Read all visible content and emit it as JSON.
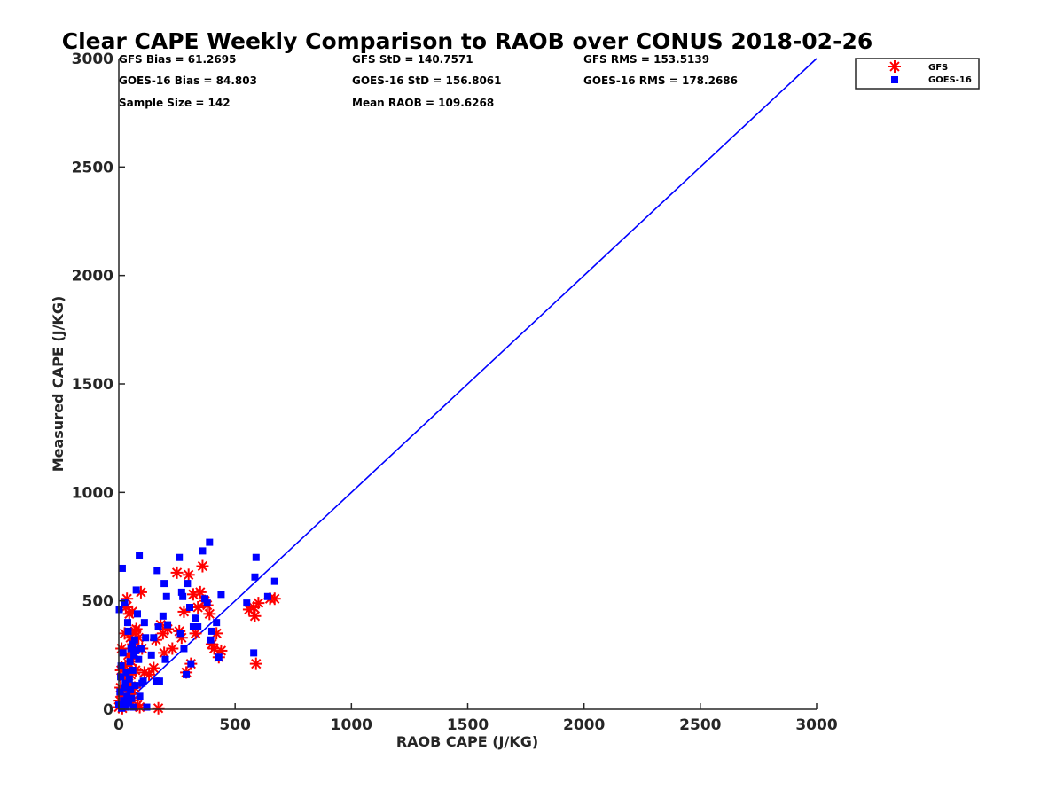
{
  "chart_data": {
    "type": "scatter",
    "title": "Clear CAPE Weekly Comparison to RAOB over CONUS 2018-02-26",
    "xlabel": "RAOB CAPE (J/KG)",
    "ylabel": "Measured CAPE (J/KG)",
    "xlim": [
      0,
      3000
    ],
    "ylim": [
      0,
      3000
    ],
    "xticks": [
      0,
      500,
      1000,
      1500,
      2000,
      2500,
      3000
    ],
    "yticks": [
      0,
      500,
      1000,
      1500,
      2000,
      2500,
      3000
    ],
    "xtick_labels": [
      "0",
      "500",
      "1000",
      "1500",
      "2000",
      "2500",
      "3000"
    ],
    "ytick_labels": [
      "0",
      "500",
      "1000",
      "1500",
      "2000",
      "2500",
      "3000"
    ],
    "grid": false,
    "legend_position": "top-right, outside plot",
    "stats": [
      "GFS Bias = 61.2695",
      "GFS StD = 140.7571",
      "GFS RMS = 153.5139",
      "GOES-16 Bias = 84.803",
      "GOES-16 StD = 156.8061",
      "GOES-16 RMS = 178.2686",
      "Sample Size = 142",
      "Mean RAOB = 109.6268"
    ],
    "reference_line": {
      "points": [
        [
          0,
          0
        ],
        [
          3000,
          3000
        ]
      ],
      "color": "#0000ff"
    },
    "series": [
      {
        "name": "GFS",
        "marker": "asterisk",
        "color": "#ff0000",
        "points": [
          [
            0,
            10
          ],
          [
            5,
            40
          ],
          [
            8,
            100
          ],
          [
            10,
            180
          ],
          [
            12,
            280
          ],
          [
            15,
            5
          ],
          [
            18,
            60
          ],
          [
            20,
            150
          ],
          [
            22,
            20
          ],
          [
            25,
            350
          ],
          [
            28,
            200
          ],
          [
            30,
            470
          ],
          [
            32,
            90
          ],
          [
            35,
            510
          ],
          [
            38,
            30
          ],
          [
            40,
            250
          ],
          [
            42,
            120
          ],
          [
            45,
            440
          ],
          [
            48,
            70
          ],
          [
            50,
            330
          ],
          [
            52,
            160
          ],
          [
            55,
            220
          ],
          [
            58,
            450
          ],
          [
            60,
            40
          ],
          [
            62,
            300
          ],
          [
            65,
            260
          ],
          [
            68,
            100
          ],
          [
            70,
            360
          ],
          [
            72,
            180
          ],
          [
            75,
            370
          ],
          [
            80,
            20
          ],
          [
            85,
            330
          ],
          [
            90,
            10
          ],
          [
            95,
            540
          ],
          [
            100,
            280
          ],
          [
            110,
            170
          ],
          [
            130,
            160
          ],
          [
            150,
            190
          ],
          [
            160,
            320
          ],
          [
            170,
            5
          ],
          [
            180,
            390
          ],
          [
            190,
            350
          ],
          [
            195,
            260
          ],
          [
            210,
            370
          ],
          [
            230,
            280
          ],
          [
            250,
            630
          ],
          [
            260,
            360
          ],
          [
            270,
            330
          ],
          [
            280,
            450
          ],
          [
            290,
            170
          ],
          [
            300,
            620
          ],
          [
            310,
            210
          ],
          [
            320,
            530
          ],
          [
            330,
            350
          ],
          [
            340,
            470
          ],
          [
            350,
            540
          ],
          [
            360,
            660
          ],
          [
            370,
            500
          ],
          [
            380,
            480
          ],
          [
            390,
            440
          ],
          [
            400,
            300
          ],
          [
            410,
            280
          ],
          [
            420,
            350
          ],
          [
            430,
            240
          ],
          [
            440,
            270
          ],
          [
            560,
            460
          ],
          [
            580,
            470
          ],
          [
            585,
            430
          ],
          [
            590,
            210
          ],
          [
            600,
            490
          ],
          [
            650,
            510
          ],
          [
            670,
            510
          ]
        ]
      },
      {
        "name": "GOES-16",
        "marker": "square",
        "color": "#0000ff",
        "points": [
          [
            0,
            20
          ],
          [
            2,
            460
          ],
          [
            5,
            80
          ],
          [
            8,
            150
          ],
          [
            10,
            200
          ],
          [
            12,
            5
          ],
          [
            15,
            650
          ],
          [
            18,
            260
          ],
          [
            20,
            40
          ],
          [
            22,
            100
          ],
          [
            25,
            490
          ],
          [
            28,
            120
          ],
          [
            30,
            10
          ],
          [
            32,
            170
          ],
          [
            35,
            60
          ],
          [
            38,
            400
          ],
          [
            40,
            360
          ],
          [
            42,
            30
          ],
          [
            45,
            140
          ],
          [
            48,
            220
          ],
          [
            50,
            90
          ],
          [
            52,
            280
          ],
          [
            55,
            50
          ],
          [
            58,
            300
          ],
          [
            60,
            180
          ],
          [
            62,
            10
          ],
          [
            65,
            250
          ],
          [
            68,
            320
          ],
          [
            70,
            110
          ],
          [
            72,
            270
          ],
          [
            75,
            550
          ],
          [
            80,
            440
          ],
          [
            85,
            230
          ],
          [
            88,
            710
          ],
          [
            90,
            60
          ],
          [
            95,
            280
          ],
          [
            100,
            120
          ],
          [
            105,
            130
          ],
          [
            110,
            400
          ],
          [
            115,
            330
          ],
          [
            120,
            10
          ],
          [
            140,
            250
          ],
          [
            150,
            330
          ],
          [
            160,
            130
          ],
          [
            165,
            640
          ],
          [
            170,
            380
          ],
          [
            175,
            130
          ],
          [
            190,
            430
          ],
          [
            195,
            580
          ],
          [
            200,
            230
          ],
          [
            205,
            520
          ],
          [
            210,
            390
          ],
          [
            260,
            700
          ],
          [
            265,
            350
          ],
          [
            270,
            540
          ],
          [
            275,
            520
          ],
          [
            280,
            280
          ],
          [
            290,
            160
          ],
          [
            295,
            580
          ],
          [
            305,
            470
          ],
          [
            310,
            210
          ],
          [
            320,
            380
          ],
          [
            330,
            420
          ],
          [
            340,
            380
          ],
          [
            360,
            730
          ],
          [
            370,
            510
          ],
          [
            380,
            490
          ],
          [
            390,
            770
          ],
          [
            395,
            320
          ],
          [
            400,
            360
          ],
          [
            420,
            400
          ],
          [
            430,
            240
          ],
          [
            440,
            530
          ],
          [
            550,
            490
          ],
          [
            580,
            260
          ],
          [
            585,
            610
          ],
          [
            590,
            700
          ],
          [
            640,
            520
          ],
          [
            670,
            590
          ]
        ]
      }
    ]
  }
}
